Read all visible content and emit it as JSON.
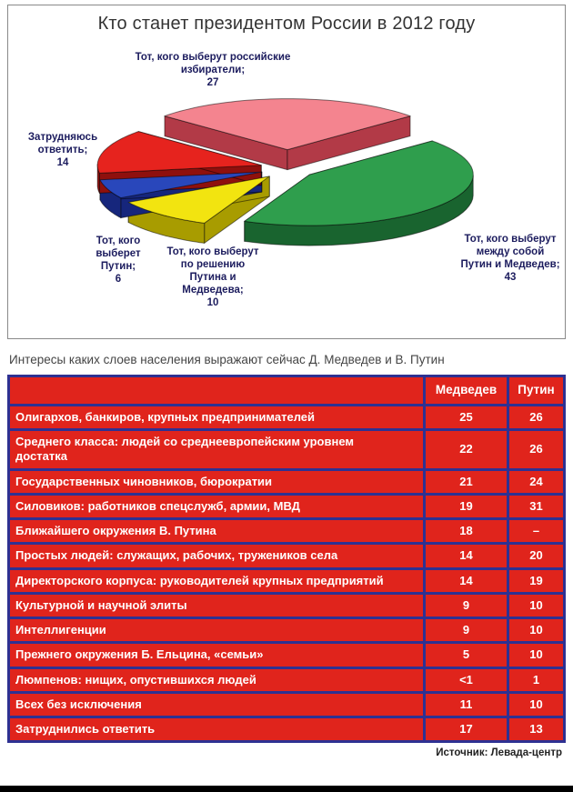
{
  "footer": {
    "source": "Источник: Левада-центр"
  },
  "chart_data": [
    {
      "type": "pie",
      "title": "Кто станет президентом России в 2012 году",
      "legend_position": "around-slices",
      "start_angle_deg": 221.4,
      "clockwise": true,
      "slices": [
        {
          "label": "Тот, кого выберут российские избиратели;",
          "value": 27,
          "color": "#f4848f",
          "side": "#b23a47",
          "explode": 1.7
        },
        {
          "label": "Тот, кого выберут между собой Путин и Медведев;",
          "value": 43,
          "color": "#2f9e4d",
          "side": "#19642f",
          "explode": 1.0
        },
        {
          "label": "Тот, кого выберут по решению Путина и Медведева;",
          "value": 10,
          "color": "#f2e410",
          "side": "#a89c00",
          "explode": 1.0
        },
        {
          "label": "Тот, кого выберет Путин;",
          "value": 6,
          "color": "#2947bb",
          "side": "#16267c",
          "explode": 1.0
        },
        {
          "label": "Затрудняюсь ответить;",
          "value": 14,
          "color": "#e6231e",
          "side": "#8f100d",
          "explode": 1.0
        }
      ]
    },
    {
      "type": "table",
      "title": "Интересы каких слоев населения выражают сейчас Д. Медведев и В. Путин",
      "columns": [
        "Медведев",
        "Путин"
      ],
      "rows": [
        {
          "label": "Олигархов, банкиров, крупных предпринимателей",
          "medvedev": "25",
          "putin": "26"
        },
        {
          "label": "Среднего класса: людей со среднеевропейским уровнем достатка",
          "medvedev": "22",
          "putin": "26"
        },
        {
          "label": "Государственных чиновников, бюрократии",
          "medvedev": "21",
          "putin": "24"
        },
        {
          "label": "Силовиков: работников спецслужб, армии, МВД",
          "medvedev": "19",
          "putin": "31"
        },
        {
          "label": "Ближайшего окружения В. Путина",
          "medvedev": "18",
          "putin": "–"
        },
        {
          "label": "Простых людей: служащих, рабочих, тружеников села",
          "medvedev": "14",
          "putin": "20"
        },
        {
          "label": "Директорского корпуса: руководителей крупных предприятий",
          "medvedev": "14",
          "putin": "19"
        },
        {
          "label": "Культурной и научной элиты",
          "medvedev": "9",
          "putin": "10"
        },
        {
          "label": "Интеллигенции",
          "medvedev": "9",
          "putin": "10"
        },
        {
          "label": "Прежнего окружения Б. Ельцина, «семьи»",
          "medvedev": "5",
          "putin": "10"
        },
        {
          "label": "Люмпенов: нищих, опустившихся людей",
          "medvedev": "<1",
          "putin": "1"
        },
        {
          "label": "Всех без исключения",
          "medvedev": "11",
          "putin": "10"
        },
        {
          "label": "Затруднились ответить",
          "medvedev": "17",
          "putin": "13"
        }
      ]
    }
  ]
}
